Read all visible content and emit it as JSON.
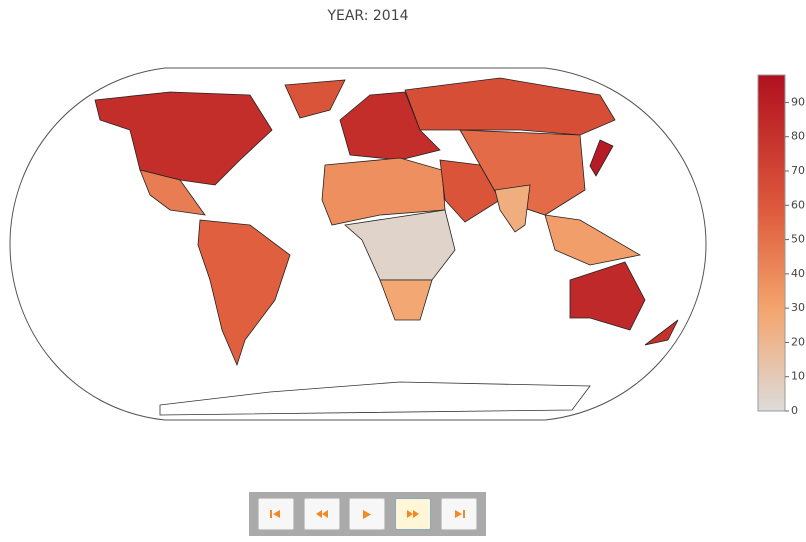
{
  "chart_data": {
    "type": "choropleth",
    "title": "YEAR: 2014",
    "values": [
      82,
      62,
      45,
      57,
      82,
      65,
      38,
      62,
      5,
      28,
      52,
      25,
      32,
      92,
      85,
      80
    ],
    "zlim": [
      0,
      98
    ],
    "colorscale": [
      [
        0,
        "#dcdcdc"
      ],
      [
        0.3,
        "#f4a56e"
      ],
      [
        0.6,
        "#de5a3c"
      ],
      [
        1,
        "#b0101f"
      ]
    ],
    "colorbar_ticks": [
      0,
      10,
      20,
      30,
      40,
      50,
      60,
      70,
      80,
      90
    ]
  }
}
